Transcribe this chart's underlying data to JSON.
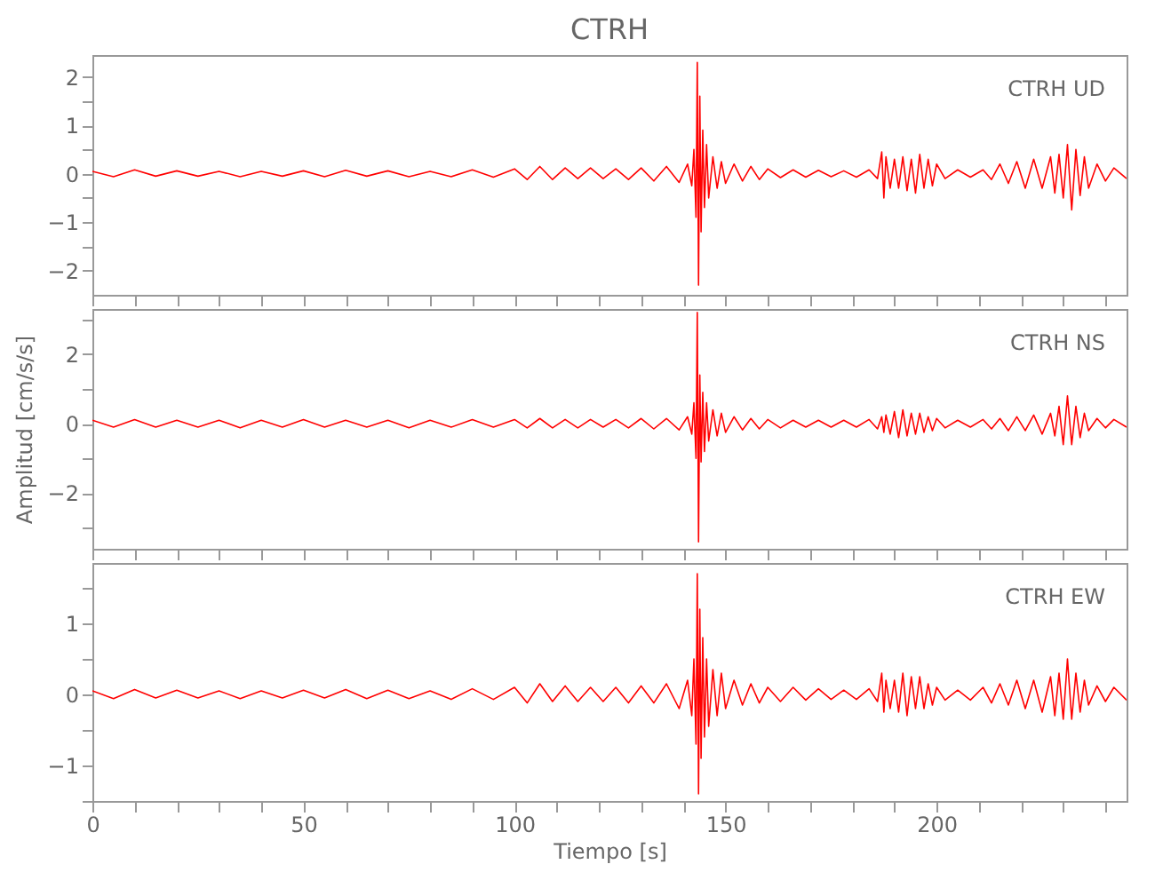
{
  "chart_data": [
    {
      "type": "line",
      "title": "CTRH",
      "annotations": [
        "CTRH   UD"
      ],
      "tick_labels": "y",
      "grid": false,
      "marker": "none",
      "line_style": "solid",
      "x": [
        0,
        5,
        10,
        15,
        20,
        25,
        30,
        35,
        40,
        45,
        50,
        55,
        60,
        65,
        70,
        75,
        80,
        85,
        90,
        95,
        100,
        103,
        106,
        109,
        112,
        115,
        118,
        121,
        124,
        127,
        130,
        133,
        136,
        139,
        141,
        142,
        142.5,
        143,
        143.3,
        143.6,
        143.9,
        144.2,
        144.6,
        145,
        145.5,
        146,
        147,
        148,
        149,
        150,
        152,
        154,
        156,
        158,
        160,
        163,
        166,
        169,
        172,
        175,
        178,
        181,
        184,
        186,
        187,
        187.5,
        188,
        189,
        190,
        191,
        192,
        193,
        194,
        195,
        196,
        197,
        198,
        199,
        200,
        202,
        205,
        208,
        211,
        213,
        215,
        217,
        219,
        221,
        223,
        225,
        227,
        228,
        229,
        230,
        231,
        232,
        233,
        234,
        235,
        236,
        238,
        240,
        242,
        245
      ],
      "xlim": [
        0,
        245
      ],
      "xticks": [
        0,
        {
          "value": 10,
          "label": null
        },
        {
          "value": 20,
          "label": null
        },
        {
          "value": 30,
          "label": null
        },
        {
          "value": 40,
          "label": null
        },
        50,
        {
          "value": 60,
          "label": null
        },
        {
          "value": 70,
          "label": null
        },
        {
          "value": 80,
          "label": null
        },
        {
          "value": 90,
          "label": null
        },
        100,
        {
          "value": 110,
          "label": null
        },
        {
          "value": 120,
          "label": null
        },
        {
          "value": 130,
          "label": null
        },
        {
          "value": 140,
          "label": null
        },
        150,
        {
          "value": 160,
          "label": null
        },
        {
          "value": 170,
          "label": null
        },
        {
          "value": 180,
          "label": null
        },
        {
          "value": 190,
          "label": null
        },
        200,
        {
          "value": 210,
          "label": null
        },
        {
          "value": 220,
          "label": null
        },
        {
          "value": 230,
          "label": null
        },
        {
          "value": 240,
          "label": null
        }
      ],
      "ylim": [
        -2.5,
        2.45
      ],
      "yticks": [
        -2,
        {
          "value": -1.5,
          "label": null
        },
        -1,
        {
          "value": -0.5,
          "label": null
        },
        0,
        {
          "value": 0.5,
          "label": null
        },
        1,
        {
          "value": 1.5,
          "label": null
        },
        2
      ],
      "series": [
        {
          "color": "#ff0000",
          "values": [
            0.05,
            -0.06,
            0.08,
            -0.05,
            0.06,
            -0.05,
            0.05,
            -0.06,
            0.05,
            -0.05,
            0.06,
            -0.06,
            0.07,
            -0.05,
            0.06,
            -0.06,
            0.05,
            -0.06,
            0.08,
            -0.07,
            0.1,
            -0.12,
            0.15,
            -0.12,
            0.12,
            -0.1,
            0.12,
            -0.1,
            0.1,
            -0.12,
            0.12,
            -0.15,
            0.15,
            -0.18,
            0.2,
            -0.25,
            0.5,
            -0.9,
            2.3,
            -2.3,
            1.6,
            -1.2,
            0.9,
            -0.7,
            0.6,
            -0.5,
            0.35,
            -0.3,
            0.25,
            -0.2,
            0.2,
            -0.15,
            0.15,
            -0.12,
            0.1,
            -0.08,
            0.08,
            -0.07,
            0.07,
            -0.06,
            0.06,
            -0.07,
            0.08,
            -0.1,
            0.45,
            -0.5,
            0.35,
            -0.3,
            0.3,
            -0.3,
            0.35,
            -0.35,
            0.3,
            -0.4,
            0.4,
            -0.3,
            0.3,
            -0.25,
            0.2,
            -0.1,
            0.08,
            -0.07,
            0.08,
            -0.12,
            0.2,
            -0.2,
            0.25,
            -0.3,
            0.3,
            -0.3,
            0.35,
            -0.4,
            0.4,
            -0.5,
            0.6,
            -0.75,
            0.5,
            -0.45,
            0.35,
            -0.3,
            0.2,
            -0.15,
            0.12,
            -0.1
          ]
        }
      ]
    },
    {
      "type": "line",
      "ylabel": "Amplitud  [cm/s/s]",
      "annotations": [
        "CTRH   NS"
      ],
      "tick_labels": "y",
      "grid": false,
      "marker": "none",
      "line_style": "solid",
      "x": [
        0,
        5,
        10,
        15,
        20,
        25,
        30,
        35,
        40,
        45,
        50,
        55,
        60,
        65,
        70,
        75,
        80,
        85,
        90,
        95,
        100,
        103,
        106,
        109,
        112,
        115,
        118,
        121,
        124,
        127,
        130,
        133,
        136,
        139,
        141,
        142,
        142.5,
        143,
        143.3,
        143.6,
        143.9,
        144.2,
        144.6,
        145,
        145.5,
        146,
        147,
        148,
        149,
        150,
        152,
        154,
        156,
        158,
        160,
        163,
        166,
        169,
        172,
        175,
        178,
        181,
        184,
        186,
        187,
        187.5,
        188,
        189,
        190,
        191,
        192,
        193,
        194,
        195,
        196,
        197,
        198,
        199,
        200,
        202,
        205,
        208,
        211,
        213,
        215,
        217,
        219,
        221,
        223,
        225,
        227,
        228,
        229,
        230,
        231,
        232,
        233,
        234,
        235,
        236,
        238,
        240,
        242,
        245
      ],
      "xlim": [
        0,
        245
      ],
      "xticks": [
        0,
        {
          "value": 10,
          "label": null
        },
        {
          "value": 20,
          "label": null
        },
        {
          "value": 30,
          "label": null
        },
        {
          "value": 40,
          "label": null
        },
        50,
        {
          "value": 60,
          "label": null
        },
        {
          "value": 70,
          "label": null
        },
        {
          "value": 80,
          "label": null
        },
        {
          "value": 90,
          "label": null
        },
        100,
        {
          "value": 110,
          "label": null
        },
        {
          "value": 120,
          "label": null
        },
        {
          "value": 130,
          "label": null
        },
        {
          "value": 140,
          "label": null
        },
        150,
        {
          "value": 160,
          "label": null
        },
        {
          "value": 170,
          "label": null
        },
        {
          "value": 180,
          "label": null
        },
        {
          "value": 190,
          "label": null
        },
        200,
        {
          "value": 210,
          "label": null
        },
        {
          "value": 220,
          "label": null
        },
        {
          "value": 230,
          "label": null
        },
        {
          "value": 240,
          "label": null
        }
      ],
      "ylim": [
        -3.6,
        3.3
      ],
      "yticks": [
        {
          "value": -3,
          "label": null
        },
        -2,
        {
          "value": -1,
          "label": null
        },
        0,
        {
          "value": 1,
          "label": null
        },
        2,
        {
          "value": 3,
          "label": null
        }
      ],
      "series": [
        {
          "color": "#ff0000",
          "values": [
            0.1,
            -0.1,
            0.12,
            -0.1,
            0.1,
            -0.1,
            0.1,
            -0.12,
            0.1,
            -0.1,
            0.12,
            -0.1,
            0.1,
            -0.1,
            0.1,
            -0.12,
            0.1,
            -0.1,
            0.12,
            -0.1,
            0.12,
            -0.12,
            0.15,
            -0.12,
            0.12,
            -0.12,
            0.12,
            -0.1,
            0.12,
            -0.12,
            0.15,
            -0.15,
            0.15,
            -0.18,
            0.2,
            -0.3,
            0.6,
            -1.0,
            3.2,
            -3.4,
            1.4,
            -1.1,
            0.9,
            -0.8,
            0.6,
            -0.5,
            0.4,
            -0.35,
            0.3,
            -0.25,
            0.2,
            -0.18,
            0.15,
            -0.15,
            0.12,
            -0.12,
            0.1,
            -0.1,
            0.1,
            -0.1,
            0.1,
            -0.1,
            0.12,
            -0.15,
            0.2,
            -0.25,
            0.25,
            -0.3,
            0.35,
            -0.4,
            0.4,
            -0.35,
            0.3,
            -0.3,
            0.3,
            -0.25,
            0.2,
            -0.2,
            0.15,
            -0.12,
            0.1,
            -0.1,
            0.12,
            -0.15,
            0.15,
            -0.2,
            0.2,
            -0.2,
            0.25,
            -0.3,
            0.3,
            -0.35,
            0.5,
            -0.6,
            0.8,
            -0.6,
            0.5,
            -0.4,
            0.3,
            -0.2,
            0.15,
            -0.12,
            0.12,
            -0.1
          ]
        }
      ]
    },
    {
      "type": "line",
      "xlabel": "Tiempo  [s]",
      "annotations": [
        "CTRH   EW"
      ],
      "grid": false,
      "marker": "none",
      "line_style": "solid",
      "x": [
        0,
        5,
        10,
        15,
        20,
        25,
        30,
        35,
        40,
        45,
        50,
        55,
        60,
        65,
        70,
        75,
        80,
        85,
        90,
        95,
        100,
        103,
        106,
        109,
        112,
        115,
        118,
        121,
        124,
        127,
        130,
        133,
        136,
        139,
        141,
        142,
        142.5,
        143,
        143.3,
        143.6,
        143.9,
        144.2,
        144.6,
        145,
        145.5,
        146,
        147,
        148,
        149,
        150,
        152,
        154,
        156,
        158,
        160,
        163,
        166,
        169,
        172,
        175,
        178,
        181,
        184,
        186,
        187,
        187.5,
        188,
        189,
        190,
        191,
        192,
        193,
        194,
        195,
        196,
        197,
        198,
        199,
        200,
        202,
        205,
        208,
        211,
        213,
        215,
        217,
        219,
        221,
        223,
        225,
        227,
        228,
        229,
        230,
        231,
        232,
        233,
        234,
        235,
        236,
        238,
        240,
        242,
        245
      ],
      "xlim": [
        0,
        245
      ],
      "xticks": [
        0,
        {
          "value": 10,
          "label": null
        },
        {
          "value": 20,
          "label": null
        },
        {
          "value": 30,
          "label": null
        },
        {
          "value": 40,
          "label": null
        },
        50,
        {
          "value": 60,
          "label": null
        },
        {
          "value": 70,
          "label": null
        },
        {
          "value": 80,
          "label": null
        },
        {
          "value": 90,
          "label": null
        },
        100,
        {
          "value": 110,
          "label": null
        },
        {
          "value": 120,
          "label": null
        },
        {
          "value": 130,
          "label": null
        },
        {
          "value": 140,
          "label": null
        },
        150,
        {
          "value": 160,
          "label": null
        },
        {
          "value": 170,
          "label": null
        },
        {
          "value": 180,
          "label": null
        },
        {
          "value": 190,
          "label": null
        },
        200,
        {
          "value": 210,
          "label": null
        },
        {
          "value": 220,
          "label": null
        },
        {
          "value": 230,
          "label": null
        },
        {
          "value": 240,
          "label": null
        }
      ],
      "ylim": [
        -1.5,
        1.85
      ],
      "yticks": [
        {
          "value": -1.5,
          "label": null
        },
        -1,
        {
          "value": -0.5,
          "label": null
        },
        0,
        {
          "value": 0.5,
          "label": null
        },
        1,
        {
          "value": 1.5,
          "label": null
        }
      ],
      "series": [
        {
          "color": "#ff0000",
          "values": [
            0.05,
            -0.06,
            0.07,
            -0.05,
            0.06,
            -0.05,
            0.05,
            -0.06,
            0.05,
            -0.05,
            0.06,
            -0.05,
            0.07,
            -0.06,
            0.06,
            -0.06,
            0.05,
            -0.07,
            0.08,
            -0.07,
            0.1,
            -0.12,
            0.15,
            -0.1,
            0.12,
            -0.1,
            0.1,
            -0.1,
            0.1,
            -0.12,
            0.12,
            -0.12,
            0.15,
            -0.2,
            0.2,
            -0.3,
            0.5,
            -0.7,
            1.7,
            -1.4,
            1.2,
            -0.9,
            0.8,
            -0.6,
            0.5,
            -0.45,
            0.35,
            -0.3,
            0.3,
            -0.2,
            0.2,
            -0.15,
            0.15,
            -0.12,
            0.1,
            -0.1,
            0.1,
            -0.08,
            0.08,
            -0.07,
            0.06,
            -0.07,
            0.08,
            -0.1,
            0.3,
            -0.25,
            0.2,
            -0.2,
            0.2,
            -0.25,
            0.3,
            -0.3,
            0.25,
            -0.2,
            0.25,
            -0.2,
            0.15,
            -0.15,
            0.1,
            -0.08,
            0.06,
            -0.08,
            0.1,
            -0.12,
            0.15,
            -0.15,
            0.2,
            -0.2,
            0.2,
            -0.25,
            0.25,
            -0.3,
            0.3,
            -0.35,
            0.5,
            -0.35,
            0.3,
            -0.25,
            0.2,
            -0.15,
            0.12,
            -0.1,
            0.1,
            -0.08
          ]
        }
      ]
    }
  ]
}
